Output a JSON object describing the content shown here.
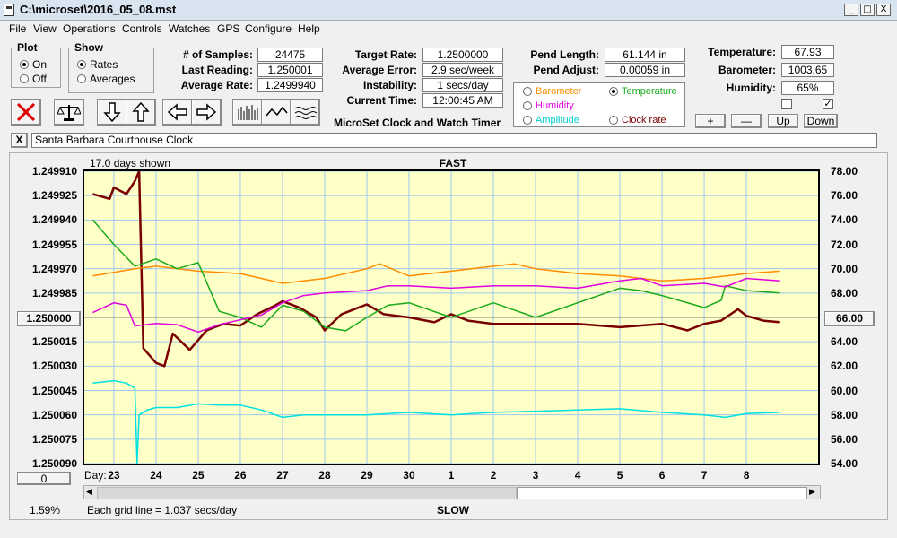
{
  "window": {
    "title": "C:\\microset\\2016_05_08.mst",
    "minimize": "_",
    "maximize": "□",
    "close": "X"
  },
  "menu": [
    "File",
    "View",
    "Operations",
    "Controls",
    "Watches",
    "GPS",
    "Configure",
    "Help"
  ],
  "plot_group": {
    "title": "Plot",
    "on": "On",
    "off": "Off",
    "selected": "On"
  },
  "show_group": {
    "title": "Show",
    "rates": "Rates",
    "averages": "Averages",
    "selected": "Rates"
  },
  "stats": {
    "samples_label": "# of Samples:",
    "samples": "24475",
    "last_label": "Last Reading:",
    "last": "1.250001",
    "avg_label": "Average Rate:",
    "avg": "1.2499940"
  },
  "timer": {
    "target_label": "Target Rate:",
    "target": "1.2500000",
    "avg_err_label": "Average Error:",
    "avg_err": "2.9 sec/week",
    "instab_label": "Instability:",
    "instab": "1 secs/day",
    "time_label": "Current Time:",
    "time": "12:00:45 AM",
    "caption": "MicroSet Clock and Watch Timer"
  },
  "pend": {
    "length_label": "Pend Length:",
    "length": "61.144 in",
    "adjust_label": "Pend Adjust:",
    "adjust": "0.00059 in"
  },
  "overlay": {
    "barometer": "Barometer",
    "temperature": "Temperature",
    "humidity": "Humidity",
    "amplitude": "Amplitude",
    "clock_rate": "Clock rate",
    "selected": "Temperature"
  },
  "env": {
    "temp_label": "Temperature:",
    "temp": "67.93",
    "baro_label": "Barometer:",
    "baro": "1003.65",
    "hum_label": "Humidity:",
    "hum": "65%"
  },
  "scale_buttons": {
    "plus": "+",
    "minus": "—",
    "up": "Up",
    "down": "Down"
  },
  "clock_name": "Santa Barbara Courthouse Clock",
  "clock_name_close": "X",
  "colors": {
    "rate": "#7a0000",
    "barometer": "#ff8c00",
    "temperature": "#1aaa1a",
    "humidity": "#e000e0",
    "amplitude": "#00e0e0",
    "plot_bg": "#ffffc8",
    "grid": "#9ec8f0"
  },
  "chart_data": {
    "type": "line",
    "top_label": "FAST",
    "bottom_label": "SLOW",
    "days_shown": "17.0 days shown",
    "grid_note": "Each grid line = 1.037 secs/day",
    "x_prefix": "Day:",
    "x_days": [
      "23",
      "24",
      "25",
      "26",
      "27",
      "28",
      "29",
      "30",
      "1",
      "2",
      "3",
      "4",
      "5",
      "6",
      "7",
      "8"
    ],
    "x_day_value": [
      23,
      24,
      25,
      26,
      27,
      28,
      29,
      30,
      31,
      32,
      33,
      34,
      35,
      36,
      37,
      38
    ],
    "x_range": [
      22.3,
      39.7
    ],
    "left_ticks": [
      "1.249910",
      "1.249925",
      "1.249940",
      "1.249955",
      "1.249970",
      "1.249985",
      "1.250000",
      "1.250015",
      "1.250030",
      "1.250045",
      "1.250060",
      "1.250075",
      "1.250090"
    ],
    "left_range": [
      1.24991,
      1.25009
    ],
    "left_button": "1.250000",
    "right_ticks": [
      "78.00",
      "76.00",
      "74.00",
      "72.00",
      "70.00",
      "68.00",
      "66.00",
      "64.00",
      "62.00",
      "60.00",
      "58.00",
      "56.00",
      "54.00"
    ],
    "right_range": [
      54,
      78
    ],
    "right_button": "66.00",
    "zero_button": "0",
    "percent": "1.59%",
    "series": [
      {
        "key": "rate",
        "axis": "left",
        "x": [
          22.5,
          22.9,
          23.0,
          23.3,
          23.5,
          23.6,
          23.7,
          23.8,
          24.0,
          24.2,
          24.4,
          24.8,
          25.2,
          25.6,
          26.0,
          26.4,
          26.8,
          27.0,
          27.4,
          27.8,
          28.0,
          28.4,
          28.8,
          29.0,
          29.4,
          30.0,
          30.6,
          31.0,
          31.4,
          32.0,
          33.0,
          34.0,
          35.0,
          36.0,
          36.6,
          37.0,
          37.4,
          37.8,
          38.0,
          38.4,
          38.8
        ],
        "y": [
          1.249924,
          1.249927,
          1.24992,
          1.249924,
          1.249916,
          1.24991,
          1.250019,
          1.250022,
          1.250028,
          1.25003,
          1.25001,
          1.25002,
          1.250008,
          1.250004,
          1.250005,
          1.249998,
          1.249993,
          1.24999,
          1.249994,
          1.25,
          1.250008,
          1.249998,
          1.249994,
          1.249992,
          1.249998,
          1.25,
          1.250003,
          1.249998,
          1.250002,
          1.250004,
          1.250004,
          1.250004,
          1.250006,
          1.250004,
          1.250008,
          1.250004,
          1.250002,
          1.249995,
          1.249999,
          1.250002,
          1.250003
        ]
      },
      {
        "key": "barometer",
        "axis": "right",
        "x": [
          22.5,
          23.5,
          24.0,
          25.0,
          26.0,
          27.0,
          28.0,
          29.0,
          29.3,
          30.0,
          31.0,
          32.0,
          32.5,
          33.0,
          34.0,
          35.0,
          36.0,
          37.0,
          38.0,
          38.8
        ],
        "y": [
          69.4,
          70.0,
          70.2,
          69.8,
          69.6,
          68.8,
          69.2,
          70.0,
          70.4,
          69.4,
          69.8,
          70.2,
          70.4,
          70.0,
          69.6,
          69.4,
          69.0,
          69.2,
          69.6,
          69.8
        ]
      },
      {
        "key": "temperature",
        "axis": "right",
        "x": [
          22.5,
          23.0,
          23.5,
          24.0,
          24.5,
          25.0,
          25.5,
          26.0,
          26.5,
          27.0,
          27.5,
          28.0,
          28.5,
          29.0,
          29.5,
          30.0,
          31.0,
          32.0,
          33.0,
          34.0,
          35.0,
          35.5,
          36.0,
          37.0,
          37.4,
          37.5,
          38.0,
          38.8
        ],
        "y": [
          74.0,
          72.0,
          70.2,
          70.8,
          70.0,
          70.5,
          66.5,
          66.0,
          65.2,
          67.0,
          66.5,
          65.2,
          64.9,
          66.0,
          67.0,
          67.2,
          66.0,
          67.2,
          66.0,
          67.2,
          68.4,
          68.2,
          67.8,
          66.8,
          67.4,
          68.6,
          68.2,
          68.0
        ]
      },
      {
        "key": "humidity",
        "axis": "right",
        "x": [
          22.5,
          23.0,
          23.3,
          23.5,
          24.0,
          24.5,
          25.0,
          25.5,
          26.0,
          26.5,
          27.0,
          27.5,
          28.0,
          29.0,
          29.5,
          30.0,
          31.0,
          32.0,
          33.0,
          34.0,
          35.0,
          35.5,
          36.0,
          37.0,
          37.5,
          38.0,
          38.8
        ],
        "y": [
          66.4,
          67.2,
          67.0,
          65.3,
          65.5,
          65.4,
          64.8,
          65.4,
          65.8,
          66.2,
          67.2,
          67.8,
          68.0,
          68.2,
          68.6,
          68.6,
          68.4,
          68.6,
          68.6,
          68.4,
          69.0,
          69.2,
          68.6,
          68.8,
          68.5,
          69.2,
          69.0
        ]
      },
      {
        "key": "amplitude",
        "axis": "right",
        "x": [
          22.5,
          23.0,
          23.3,
          23.5,
          23.55,
          23.6,
          23.8,
          24.0,
          24.5,
          25.0,
          25.5,
          26.0,
          26.5,
          27.0,
          27.5,
          28.0,
          29.0,
          30.0,
          31.0,
          32.0,
          33.0,
          34.0,
          35.0,
          36.0,
          37.0,
          37.5,
          38.0,
          38.8
        ],
        "y": [
          60.6,
          60.8,
          60.6,
          60.2,
          54.0,
          58.0,
          58.4,
          58.6,
          58.6,
          58.9,
          58.8,
          58.8,
          58.4,
          57.8,
          58.0,
          58.0,
          58.0,
          58.2,
          58.0,
          58.2,
          58.3,
          58.4,
          58.5,
          58.2,
          58.0,
          57.8,
          58.1,
          58.2
        ]
      }
    ]
  }
}
